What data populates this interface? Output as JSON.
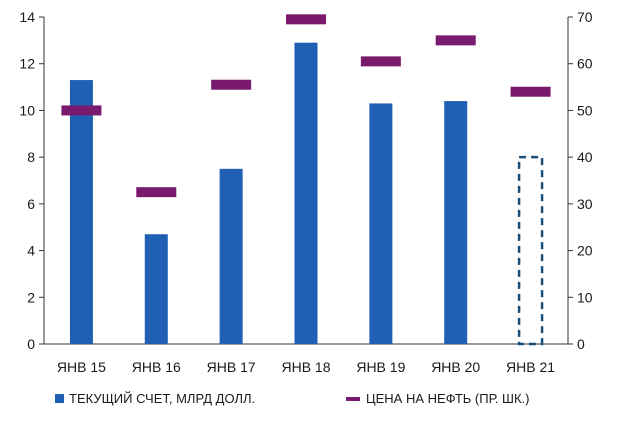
{
  "chart_data": {
    "type": "bar",
    "categories": [
      "ЯНВ 15",
      "ЯНВ 16",
      "ЯНВ 17",
      "ЯНВ 18",
      "ЯНВ 19",
      "ЯНВ 20",
      "ЯНВ 21"
    ],
    "series": [
      {
        "name": "ТЕКУЩИЙ СЧЕТ, МЛРД ДОЛЛ.",
        "type": "bar",
        "axis": "left",
        "color": "#1f5fb4",
        "values": [
          11.3,
          4.7,
          7.5,
          12.9,
          10.3,
          10.4,
          8.0
        ],
        "estimated": [
          false,
          false,
          false,
          false,
          false,
          false,
          true
        ]
      },
      {
        "name": "ЦЕНА НА НЕФТЬ (ПР. ШК.)",
        "type": "marker",
        "axis": "right",
        "color": "#7a1a6e",
        "values": [
          50,
          32.5,
          55.5,
          69.5,
          60.5,
          65,
          54
        ]
      }
    ],
    "ylim_left": [
      0,
      14
    ],
    "yticks_left": [
      "0",
      "2",
      "4",
      "6",
      "8",
      "10",
      "12",
      "14"
    ],
    "ylim_right": [
      0,
      70
    ],
    "yticks_right": [
      "0",
      "10",
      "20",
      "30",
      "40",
      "50",
      "60",
      "70"
    ],
    "grid": false,
    "legend_position": "bottom"
  }
}
